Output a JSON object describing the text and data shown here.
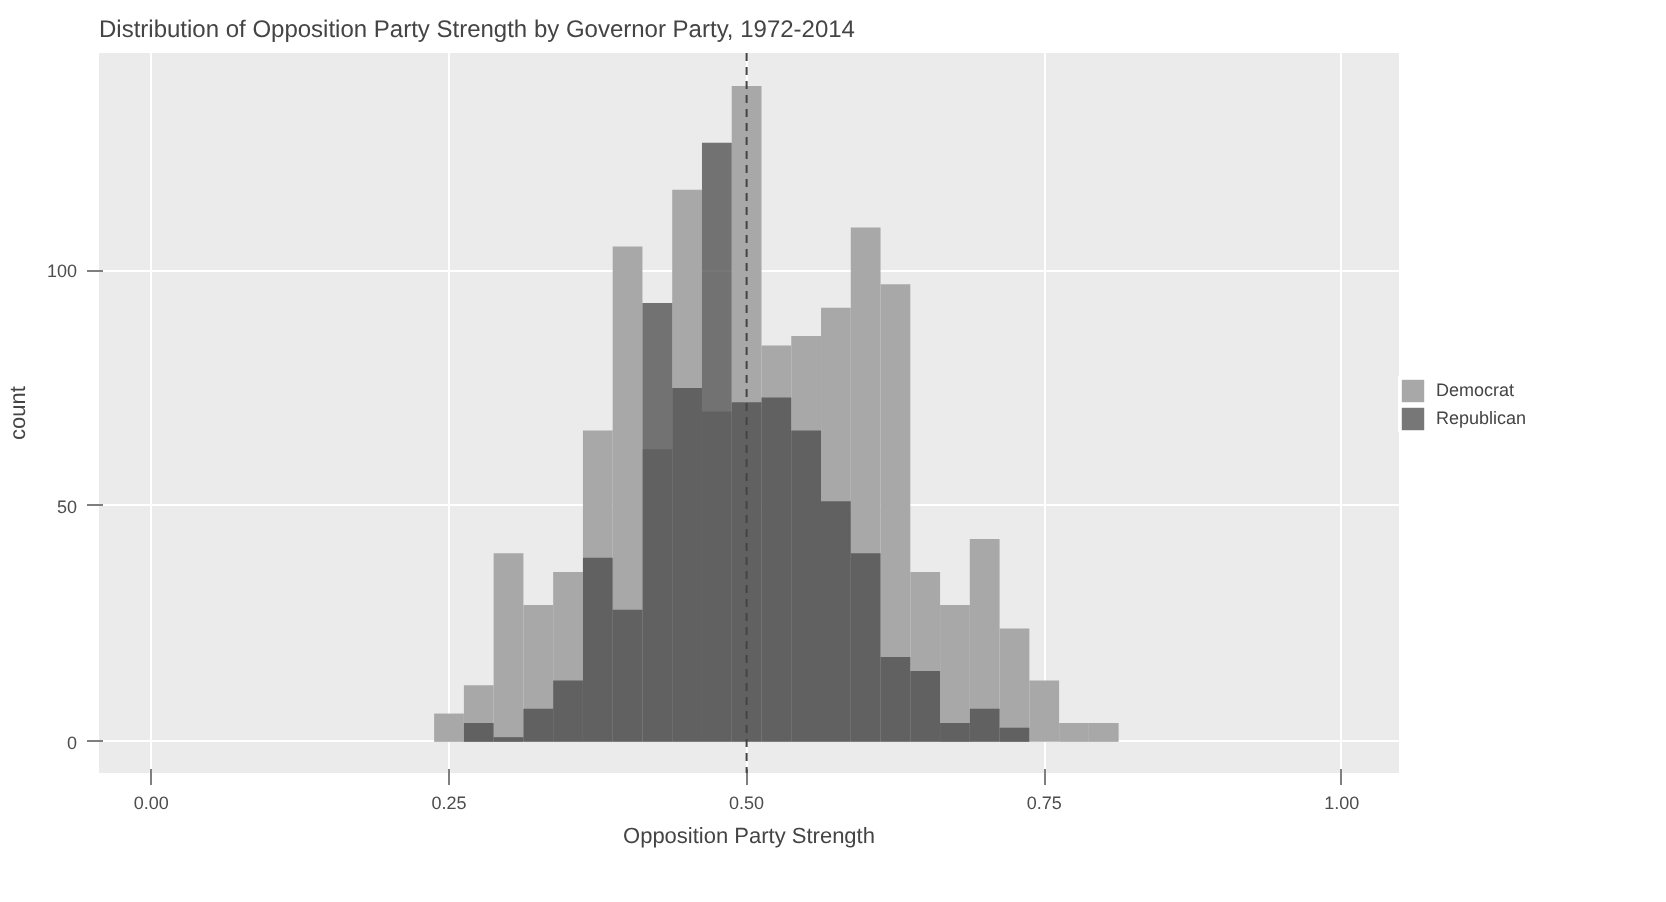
{
  "chart_data": {
    "type": "histogram",
    "title": "Distribution of Opposition Party Strength by Governor Party, 1972-2014",
    "xlabel": "Opposition Party Strength",
    "ylabel": "count",
    "bins": [
      0.2375,
      0.2625,
      0.2875,
      0.3125,
      0.3375,
      0.3625,
      0.3875,
      0.4125,
      0.4375,
      0.4625,
      0.4875,
      0.5125,
      0.5375,
      0.5625,
      0.5875,
      0.6125,
      0.6375,
      0.6625,
      0.6875,
      0.7125,
      0.7375,
      0.7625,
      0.7875,
      0.8125
    ],
    "series": [
      {
        "name": "Democrat",
        "color": "#a8a8a8",
        "values": [
          6,
          12,
          40,
          29,
          36,
          66,
          105,
          62,
          117,
          70,
          139,
          84,
          86,
          92,
          109,
          97,
          36,
          29,
          43,
          24,
          13,
          4,
          4
        ]
      },
      {
        "name": "Republican",
        "color": "#4a4a4a",
        "values": [
          0,
          4,
          1,
          7,
          13,
          39,
          28,
          93,
          75,
          127,
          72,
          73,
          66,
          51,
          40,
          18,
          15,
          4,
          7,
          3,
          0,
          0,
          0
        ]
      }
    ],
    "xlim": [
      -0.044,
      1.048
    ],
    "ylim": [
      -6.6,
      146
    ],
    "xticks": [
      {
        "value": 0,
        "label": "0.00"
      },
      {
        "value": 0.25,
        "label": "0.25"
      },
      {
        "value": 0.5,
        "label": "0.50"
      },
      {
        "value": 0.75,
        "label": "0.75"
      },
      {
        "value": 1,
        "label": "1.00"
      }
    ],
    "yticks": [
      0,
      50,
      100
    ],
    "ref_lines": [
      {
        "axis": "x",
        "value": 0.5,
        "label": null,
        "color": "#444444",
        "line_style": "dashed"
      }
    ],
    "grid": true,
    "legend": "right"
  }
}
